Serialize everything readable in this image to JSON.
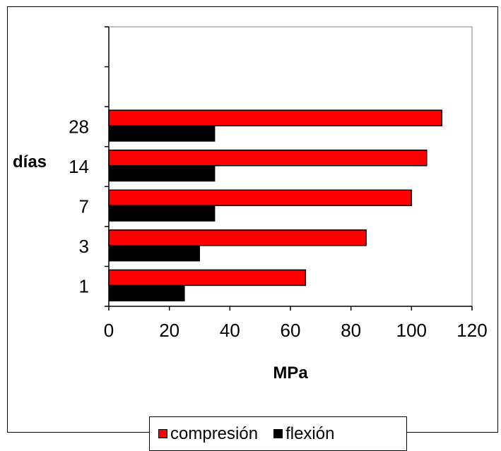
{
  "chart_data": {
    "type": "bar",
    "orientation": "horizontal",
    "categories": [
      "1",
      "3",
      "7",
      "14",
      "28"
    ],
    "series": [
      {
        "name": "compresión",
        "color": "#ff0000",
        "values": [
          65,
          85,
          100,
          105,
          110
        ]
      },
      {
        "name": "flexión",
        "color": "#000000",
        "values": [
          25,
          30,
          35,
          35,
          35
        ]
      }
    ],
    "xlabel": "MPa",
    "ylabel": "días",
    "xlim": [
      0,
      120
    ],
    "xticks": [
      "0",
      "20",
      "40",
      "60",
      "80",
      "100",
      "120"
    ],
    "grid": false,
    "legend_position": "bottom"
  }
}
